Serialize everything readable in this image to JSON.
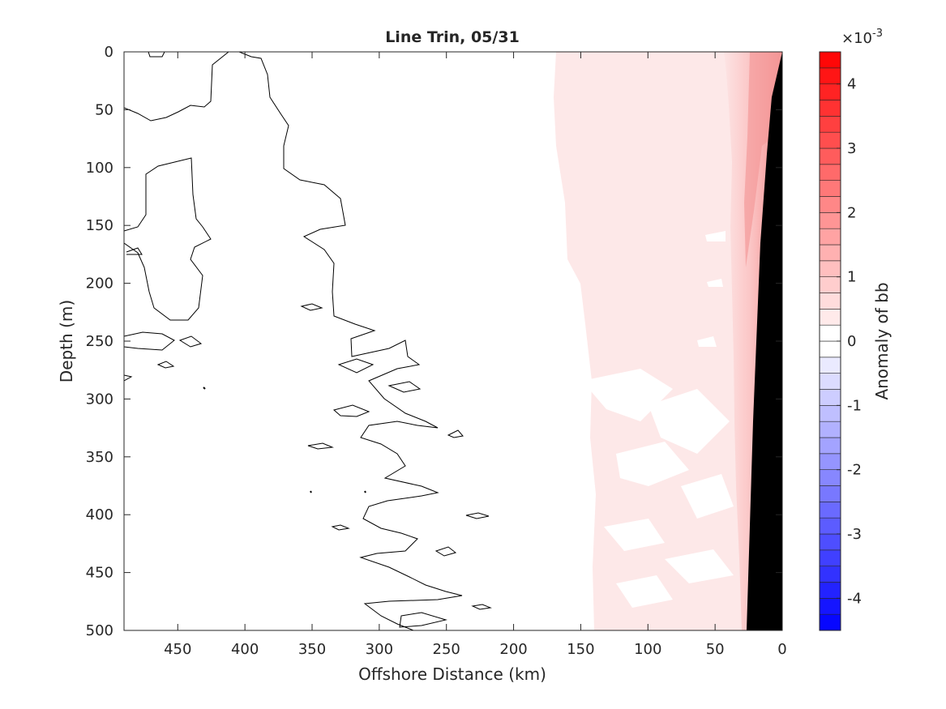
{
  "chart_data": {
    "type": "heatmap",
    "title": "Line Trin, 05/31",
    "xlabel": "Offshore Distance (km)",
    "ylabel": "Depth (m)",
    "xlim": [
      490,
      0
    ],
    "ylim": [
      0,
      500
    ],
    "x_reversed": true,
    "y_reversed": true,
    "x_ticks": [
      450,
      400,
      350,
      300,
      250,
      200,
      150,
      100,
      50,
      0
    ],
    "y_ticks": [
      0,
      50,
      100,
      150,
      200,
      250,
      300,
      350,
      400,
      450,
      500
    ],
    "colorbar": {
      "label": "Anomaly of bb",
      "exponent_label": "×10",
      "exponent_power": "-3",
      "range": [
        -4.5,
        4.5
      ],
      "ticks": [
        4,
        3,
        2,
        1,
        0,
        -1,
        -2,
        -3,
        -4
      ],
      "levels": 36,
      "placement": "right",
      "colors": {
        "negative": "#0000ff",
        "zero": "#ffffff",
        "positive": "#ff0000"
      }
    },
    "fields": {
      "nearshore_band_anomaly": [
        0.3,
        2.0
      ],
      "bottom_topography_color": "#000000",
      "zero_contour_color": "#000000"
    }
  }
}
